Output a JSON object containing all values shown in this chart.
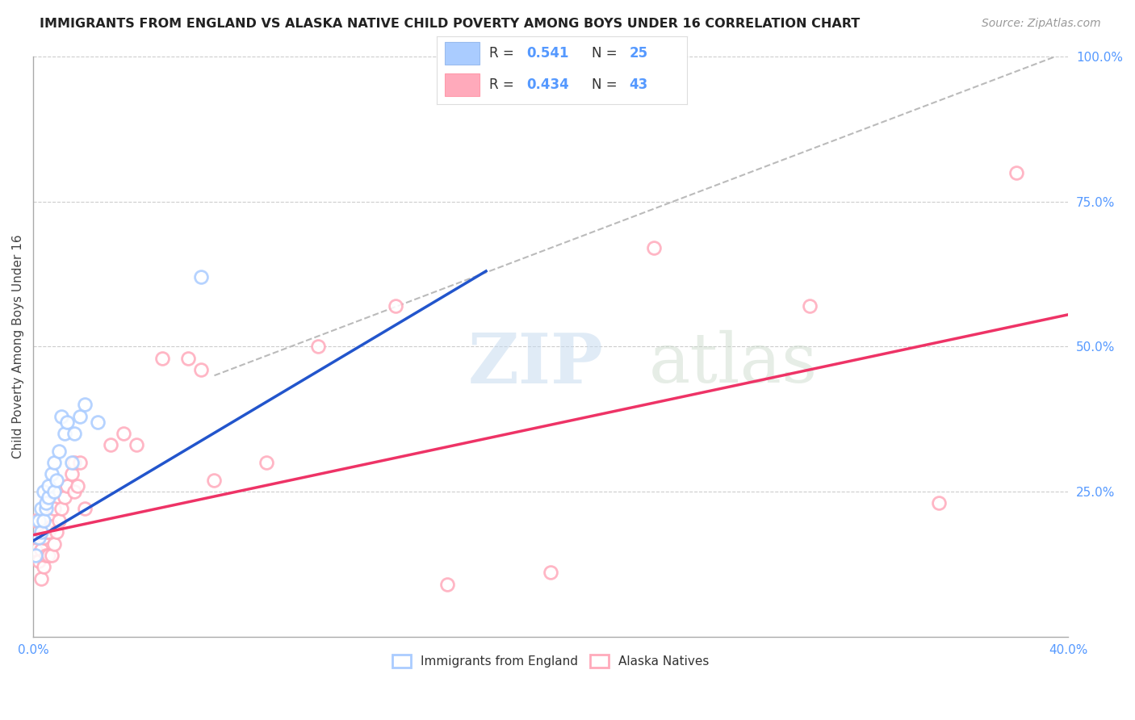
{
  "title": "IMMIGRANTS FROM ENGLAND VS ALASKA NATIVE CHILD POVERTY AMONG BOYS UNDER 16 CORRELATION CHART",
  "source": "Source: ZipAtlas.com",
  "ylabel": "Child Poverty Among Boys Under 16",
  "xlim": [
    0.0,
    0.4
  ],
  "ylim": [
    0.0,
    1.0
  ],
  "xticks": [
    0.0,
    0.05,
    0.1,
    0.15,
    0.2,
    0.25,
    0.3,
    0.35,
    0.4
  ],
  "xticklabels": [
    "0.0%",
    "",
    "",
    "",
    "",
    "",
    "",
    "",
    "40.0%"
  ],
  "yticks_right": [
    0.0,
    0.25,
    0.5,
    0.75,
    1.0
  ],
  "yticklabels_right": [
    "",
    "25.0%",
    "50.0%",
    "75.0%",
    "100.0%"
  ],
  "blue_fill": "#AACCFF",
  "blue_edge": "#99BBEE",
  "pink_fill": "#FFAABB",
  "pink_edge": "#FF99AA",
  "blue_line_color": "#2255CC",
  "pink_line_color": "#EE3366",
  "dashed_line_color": "#BBBBBB",
  "legend_label1": "Immigrants from England",
  "legend_label2": "Alaska Natives",
  "watermark_zip": "ZIP",
  "watermark_atlas": "atlas",
  "blue_scatter_x": [
    0.001,
    0.002,
    0.002,
    0.003,
    0.003,
    0.004,
    0.004,
    0.005,
    0.005,
    0.006,
    0.006,
    0.007,
    0.008,
    0.008,
    0.009,
    0.01,
    0.011,
    0.012,
    0.013,
    0.015,
    0.016,
    0.018,
    0.02,
    0.025,
    0.065
  ],
  "blue_scatter_y": [
    0.14,
    0.17,
    0.2,
    0.18,
    0.22,
    0.2,
    0.25,
    0.22,
    0.23,
    0.24,
    0.26,
    0.28,
    0.25,
    0.3,
    0.27,
    0.32,
    0.38,
    0.35,
    0.37,
    0.3,
    0.35,
    0.38,
    0.4,
    0.37,
    0.62
  ],
  "pink_scatter_x": [
    0.001,
    0.001,
    0.002,
    0.002,
    0.003,
    0.003,
    0.004,
    0.004,
    0.005,
    0.005,
    0.006,
    0.006,
    0.007,
    0.007,
    0.008,
    0.008,
    0.009,
    0.01,
    0.011,
    0.012,
    0.013,
    0.015,
    0.016,
    0.016,
    0.017,
    0.018,
    0.02,
    0.03,
    0.035,
    0.04,
    0.05,
    0.06,
    0.065,
    0.07,
    0.09,
    0.11,
    0.14,
    0.16,
    0.2,
    0.24,
    0.3,
    0.35,
    0.38
  ],
  "pink_scatter_y": [
    0.15,
    0.2,
    0.13,
    0.17,
    0.1,
    0.15,
    0.12,
    0.17,
    0.14,
    0.18,
    0.14,
    0.18,
    0.14,
    0.19,
    0.16,
    0.22,
    0.18,
    0.2,
    0.22,
    0.24,
    0.26,
    0.28,
    0.25,
    0.3,
    0.26,
    0.3,
    0.22,
    0.33,
    0.35,
    0.33,
    0.48,
    0.48,
    0.46,
    0.27,
    0.3,
    0.5,
    0.57,
    0.09,
    0.11,
    0.67,
    0.57,
    0.23,
    0.8
  ],
  "blue_line_x": [
    0.0,
    0.175
  ],
  "blue_line_y": [
    0.165,
    0.63
  ],
  "pink_line_x": [
    0.0,
    0.4
  ],
  "pink_line_y": [
    0.175,
    0.555
  ],
  "dashed_line_x": [
    0.07,
    0.395
  ],
  "dashed_line_y": [
    0.45,
    1.0
  ]
}
